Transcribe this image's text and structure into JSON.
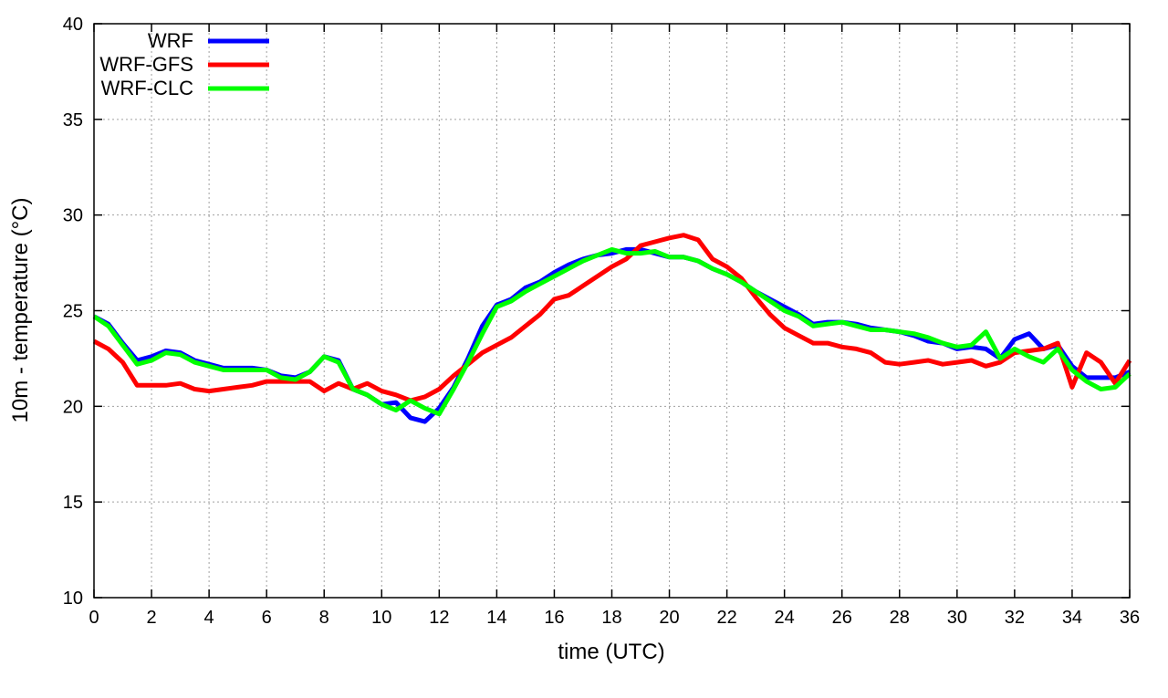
{
  "chart_data": {
    "type": "line",
    "title": "",
    "xlabel": "time (UTC)",
    "ylabel": "10m - temperature (°C)",
    "xlim": [
      0,
      36
    ],
    "ylim": [
      10,
      40
    ],
    "xticks": [
      0,
      2,
      4,
      6,
      8,
      10,
      12,
      14,
      16,
      18,
      20,
      22,
      24,
      26,
      28,
      30,
      32,
      34,
      36
    ],
    "yticks": [
      10,
      15,
      20,
      25,
      30,
      35,
      40
    ],
    "grid": true,
    "legend_position": "top-left",
    "x_step": 0.5,
    "series": [
      {
        "name": "WRF",
        "color": "#0000ff",
        "values": [
          24.7,
          24.3,
          23.3,
          22.4,
          22.6,
          22.9,
          22.8,
          22.4,
          22.2,
          22.0,
          22.0,
          22.0,
          21.9,
          21.6,
          21.5,
          21.8,
          22.6,
          22.4,
          20.9,
          20.6,
          20.1,
          20.2,
          19.4,
          19.2,
          19.9,
          21.0,
          22.5,
          24.2,
          25.3,
          25.6,
          26.2,
          26.5,
          27.0,
          27.4,
          27.7,
          27.9,
          28.0,
          28.2,
          28.2,
          28.0,
          27.8,
          27.8,
          27.6,
          27.2,
          26.9,
          26.5,
          26.0,
          25.6,
          25.2,
          24.8,
          24.3,
          24.4,
          24.4,
          24.3,
          24.1,
          24.0,
          23.9,
          23.7,
          23.4,
          23.3,
          23.0,
          23.1,
          23.0,
          22.5,
          23.5,
          23.8,
          23.0,
          23.2,
          22.1,
          21.5,
          21.5,
          21.5,
          21.8
        ]
      },
      {
        "name": "WRF-GFS",
        "color": "#ff0000",
        "values": [
          23.4,
          23.0,
          22.3,
          21.1,
          21.1,
          21.1,
          21.2,
          20.9,
          20.8,
          20.9,
          21.0,
          21.1,
          21.3,
          21.3,
          21.3,
          21.3,
          20.8,
          21.2,
          20.9,
          21.2,
          20.8,
          20.6,
          20.3,
          20.5,
          20.9,
          21.6,
          22.2,
          22.8,
          23.2,
          23.6,
          24.2,
          24.8,
          25.6,
          25.8,
          26.3,
          26.8,
          27.3,
          27.7,
          28.4,
          28.6,
          28.8,
          28.95,
          28.7,
          27.7,
          27.3,
          26.7,
          25.7,
          24.8,
          24.1,
          23.7,
          23.3,
          23.3,
          23.1,
          23.0,
          22.8,
          22.3,
          22.2,
          22.3,
          22.4,
          22.2,
          22.3,
          22.4,
          22.1,
          22.3,
          22.8,
          22.9,
          23.0,
          23.3,
          21.0,
          22.8,
          22.3,
          21.2,
          22.4
        ]
      },
      {
        "name": "WRF-CLC",
        "color": "#00ff00",
        "values": [
          24.7,
          24.2,
          23.2,
          22.2,
          22.4,
          22.8,
          22.7,
          22.3,
          22.1,
          21.9,
          21.9,
          21.9,
          21.9,
          21.5,
          21.4,
          21.8,
          22.6,
          22.3,
          20.9,
          20.6,
          20.1,
          19.8,
          20.3,
          19.9,
          19.6,
          20.9,
          22.3,
          23.8,
          25.2,
          25.5,
          26.0,
          26.4,
          26.8,
          27.2,
          27.6,
          27.9,
          28.2,
          28.0,
          28.0,
          28.1,
          27.8,
          27.8,
          27.6,
          27.2,
          26.9,
          26.5,
          26.0,
          25.5,
          25.0,
          24.7,
          24.2,
          24.3,
          24.4,
          24.2,
          24.0,
          24.0,
          23.9,
          23.8,
          23.6,
          23.3,
          23.1,
          23.2,
          23.9,
          22.5,
          23.0,
          22.6,
          22.3,
          23.0,
          21.9,
          21.3,
          20.9,
          21.0,
          21.7
        ]
      }
    ]
  }
}
